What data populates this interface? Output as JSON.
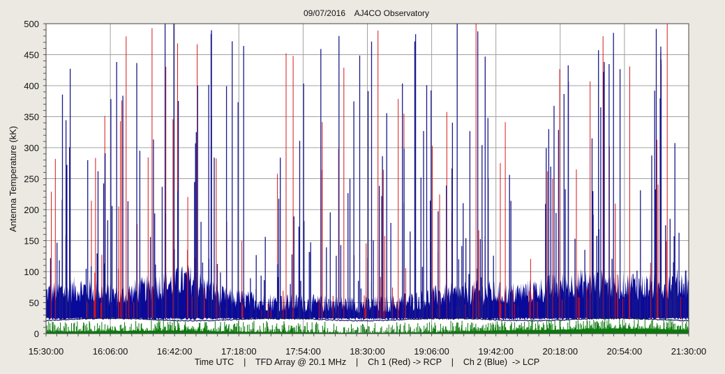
{
  "title": "09/07/2016    AJ4CO Observatory",
  "footer": "Time UTC    |    TFD Array @ 20.1 MHz    |    Ch 1 (Red) -> RCP    |    Ch 2 (Blue)  -> LCP",
  "colors": {
    "background": "#ece9e3",
    "plot_background": "#ffffff",
    "grid": "#a0a0a0",
    "ch1": "#d81818",
    "ch2": "#1a1a8c",
    "ch2_fill": "#0a0a9a",
    "baseline": "#1a1a5a",
    "green": "#0a7a0a"
  },
  "chart_data": {
    "type": "line",
    "title": "09/07/2016    AJ4CO Observatory",
    "xlabel": "Time UTC    |    TFD Array @ 20.1 MHz    |    Ch 1 (Red) -> RCP    |    Ch 2 (Blue)  -> LCP",
    "ylabel": "Antenna Temperature (kK)",
    "xlim": [
      "15:30:00",
      "21:30:00"
    ],
    "ylim": [
      0,
      500
    ],
    "x_ticks": [
      "15:30:00",
      "16:06:00",
      "16:42:00",
      "17:18:00",
      "17:54:00",
      "18:30:00",
      "19:06:00",
      "19:42:00",
      "20:18:00",
      "20:54:00",
      "21:30:00"
    ],
    "y_ticks": [
      0,
      50,
      100,
      150,
      200,
      250,
      300,
      350,
      400,
      450,
      500
    ],
    "grid": true,
    "series": [
      {
        "name": "Ch 1 (Red)",
        "color": "#d81818",
        "x": [
          "15:30:00",
          "15:50:00",
          "16:10:00",
          "16:30:00",
          "16:50:00",
          "17:10:00",
          "17:30:00",
          "17:50:00",
          "18:10:00",
          "18:30:00",
          "18:50:00",
          "19:10:00",
          "19:30:00",
          "19:50:00",
          "20:10:00",
          "20:30:00",
          "20:50:00",
          "21:10:00",
          "21:30:00"
        ],
        "values": [
          48,
          52,
          46,
          55,
          62,
          42,
          38,
          36,
          35,
          34,
          36,
          44,
          48,
          46,
          52,
          58,
          56,
          54,
          60
        ]
      },
      {
        "name": "Ch 2 (Blue)",
        "color": "#1a1a8c",
        "x": [
          "15:30:00",
          "15:50:00",
          "16:10:00",
          "16:30:00",
          "16:50:00",
          "17:10:00",
          "17:30:00",
          "17:50:00",
          "18:10:00",
          "18:30:00",
          "18:50:00",
          "19:10:00",
          "19:30:00",
          "19:50:00",
          "20:10:00",
          "20:30:00",
          "20:50:00",
          "21:10:00",
          "21:30:00"
        ],
        "values": [
          45,
          50,
          42,
          52,
          60,
          40,
          36,
          34,
          33,
          32,
          34,
          42,
          46,
          44,
          50,
          56,
          54,
          52,
          58
        ]
      },
      {
        "x": [
          "15:30:00",
          "16:06:00",
          "16:42:00",
          "17:18:00",
          "17:54:00",
          "18:30:00",
          "19:06:00",
          "19:42:00",
          "20:18:00",
          "20:54:00",
          "21:30:00"
        ],
        "values": [
          3,
          4,
          5,
          3,
          2,
          1,
          2,
          5,
          6,
          8,
          6
        ]
      }
    ]
  }
}
